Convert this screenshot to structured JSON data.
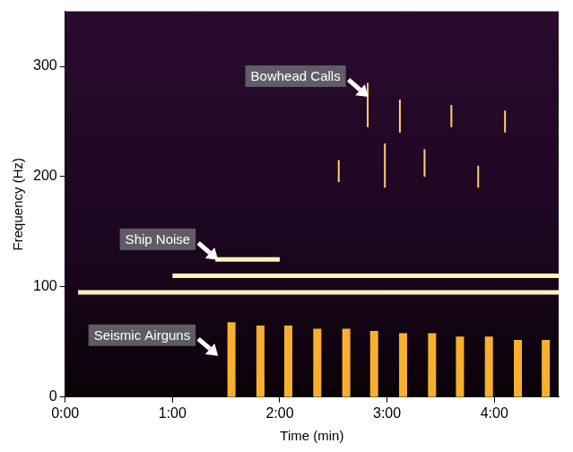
{
  "chart_data": {
    "type": "line",
    "x_label": "Time (min)",
    "y_label": "Frequency (Hz)",
    "xlim": [
      0,
      4.6
    ],
    "xticks": [
      {
        "value": 0,
        "label": "0:00"
      },
      {
        "value": 1,
        "label": "1:00"
      },
      {
        "value": 2,
        "label": "2:00"
      },
      {
        "value": 3,
        "label": "3:00"
      },
      {
        "value": 4,
        "label": "4:00"
      }
    ],
    "ylim": [
      0,
      350
    ],
    "yticks": [
      0,
      100,
      200,
      300
    ],
    "grid": false,
    "series": [
      {
        "name": "Ship Noise",
        "color": "#fff3b8",
        "x": [
          0.12,
          4.6,
          4.6,
          1.0,
          4.6,
          4.6,
          1.4,
          2.0
        ],
        "values": [
          95,
          95,
          null,
          110,
          110,
          null,
          125,
          125
        ]
      },
      {
        "name": "Seismic Airguns",
        "color": "#f7b02e",
        "x": [
          1.55,
          1.55,
          1.55,
          1.82,
          1.82,
          1.82,
          2.08,
          2.08,
          2.08,
          2.35,
          2.35,
          2.35,
          2.62,
          2.62,
          2.62,
          2.88,
          2.88,
          2.88,
          3.15,
          3.15,
          3.15,
          3.42,
          3.42,
          3.42,
          3.68,
          3.68,
          3.68,
          3.95,
          3.95,
          3.95,
          4.22,
          4.22,
          4.22,
          4.48,
          4.48
        ],
        "values": [
          0,
          68,
          null,
          0,
          65,
          null,
          0,
          65,
          null,
          0,
          62,
          null,
          0,
          62,
          null,
          0,
          60,
          null,
          0,
          58,
          null,
          0,
          58,
          null,
          0,
          55,
          null,
          0,
          55,
          null,
          0,
          52,
          null,
          0,
          52
        ]
      },
      {
        "name": "Bowhead Calls",
        "color": "#ffcf70",
        "x": [
          2.55,
          2.55,
          2.55,
          2.82,
          2.82,
          2.82,
          2.98,
          2.98,
          2.98,
          3.12,
          3.12,
          3.12,
          3.35,
          3.35,
          3.35,
          3.6,
          3.6,
          3.6,
          3.85,
          3.85,
          3.85,
          4.1,
          4.1
        ],
        "values": [
          195,
          215,
          null,
          245,
          285,
          null,
          190,
          230,
          null,
          240,
          270,
          null,
          200,
          225,
          null,
          245,
          265,
          null,
          190,
          210,
          null,
          240,
          260
        ]
      }
    ],
    "annotations": [
      {
        "text": "Bowhead Calls",
        "x": 2.85,
        "y": 270
      },
      {
        "text": "Ship Noise",
        "x": 1.45,
        "y": 122
      },
      {
        "text": "Seismic Airguns",
        "x": 1.45,
        "y": 35
      }
    ]
  }
}
